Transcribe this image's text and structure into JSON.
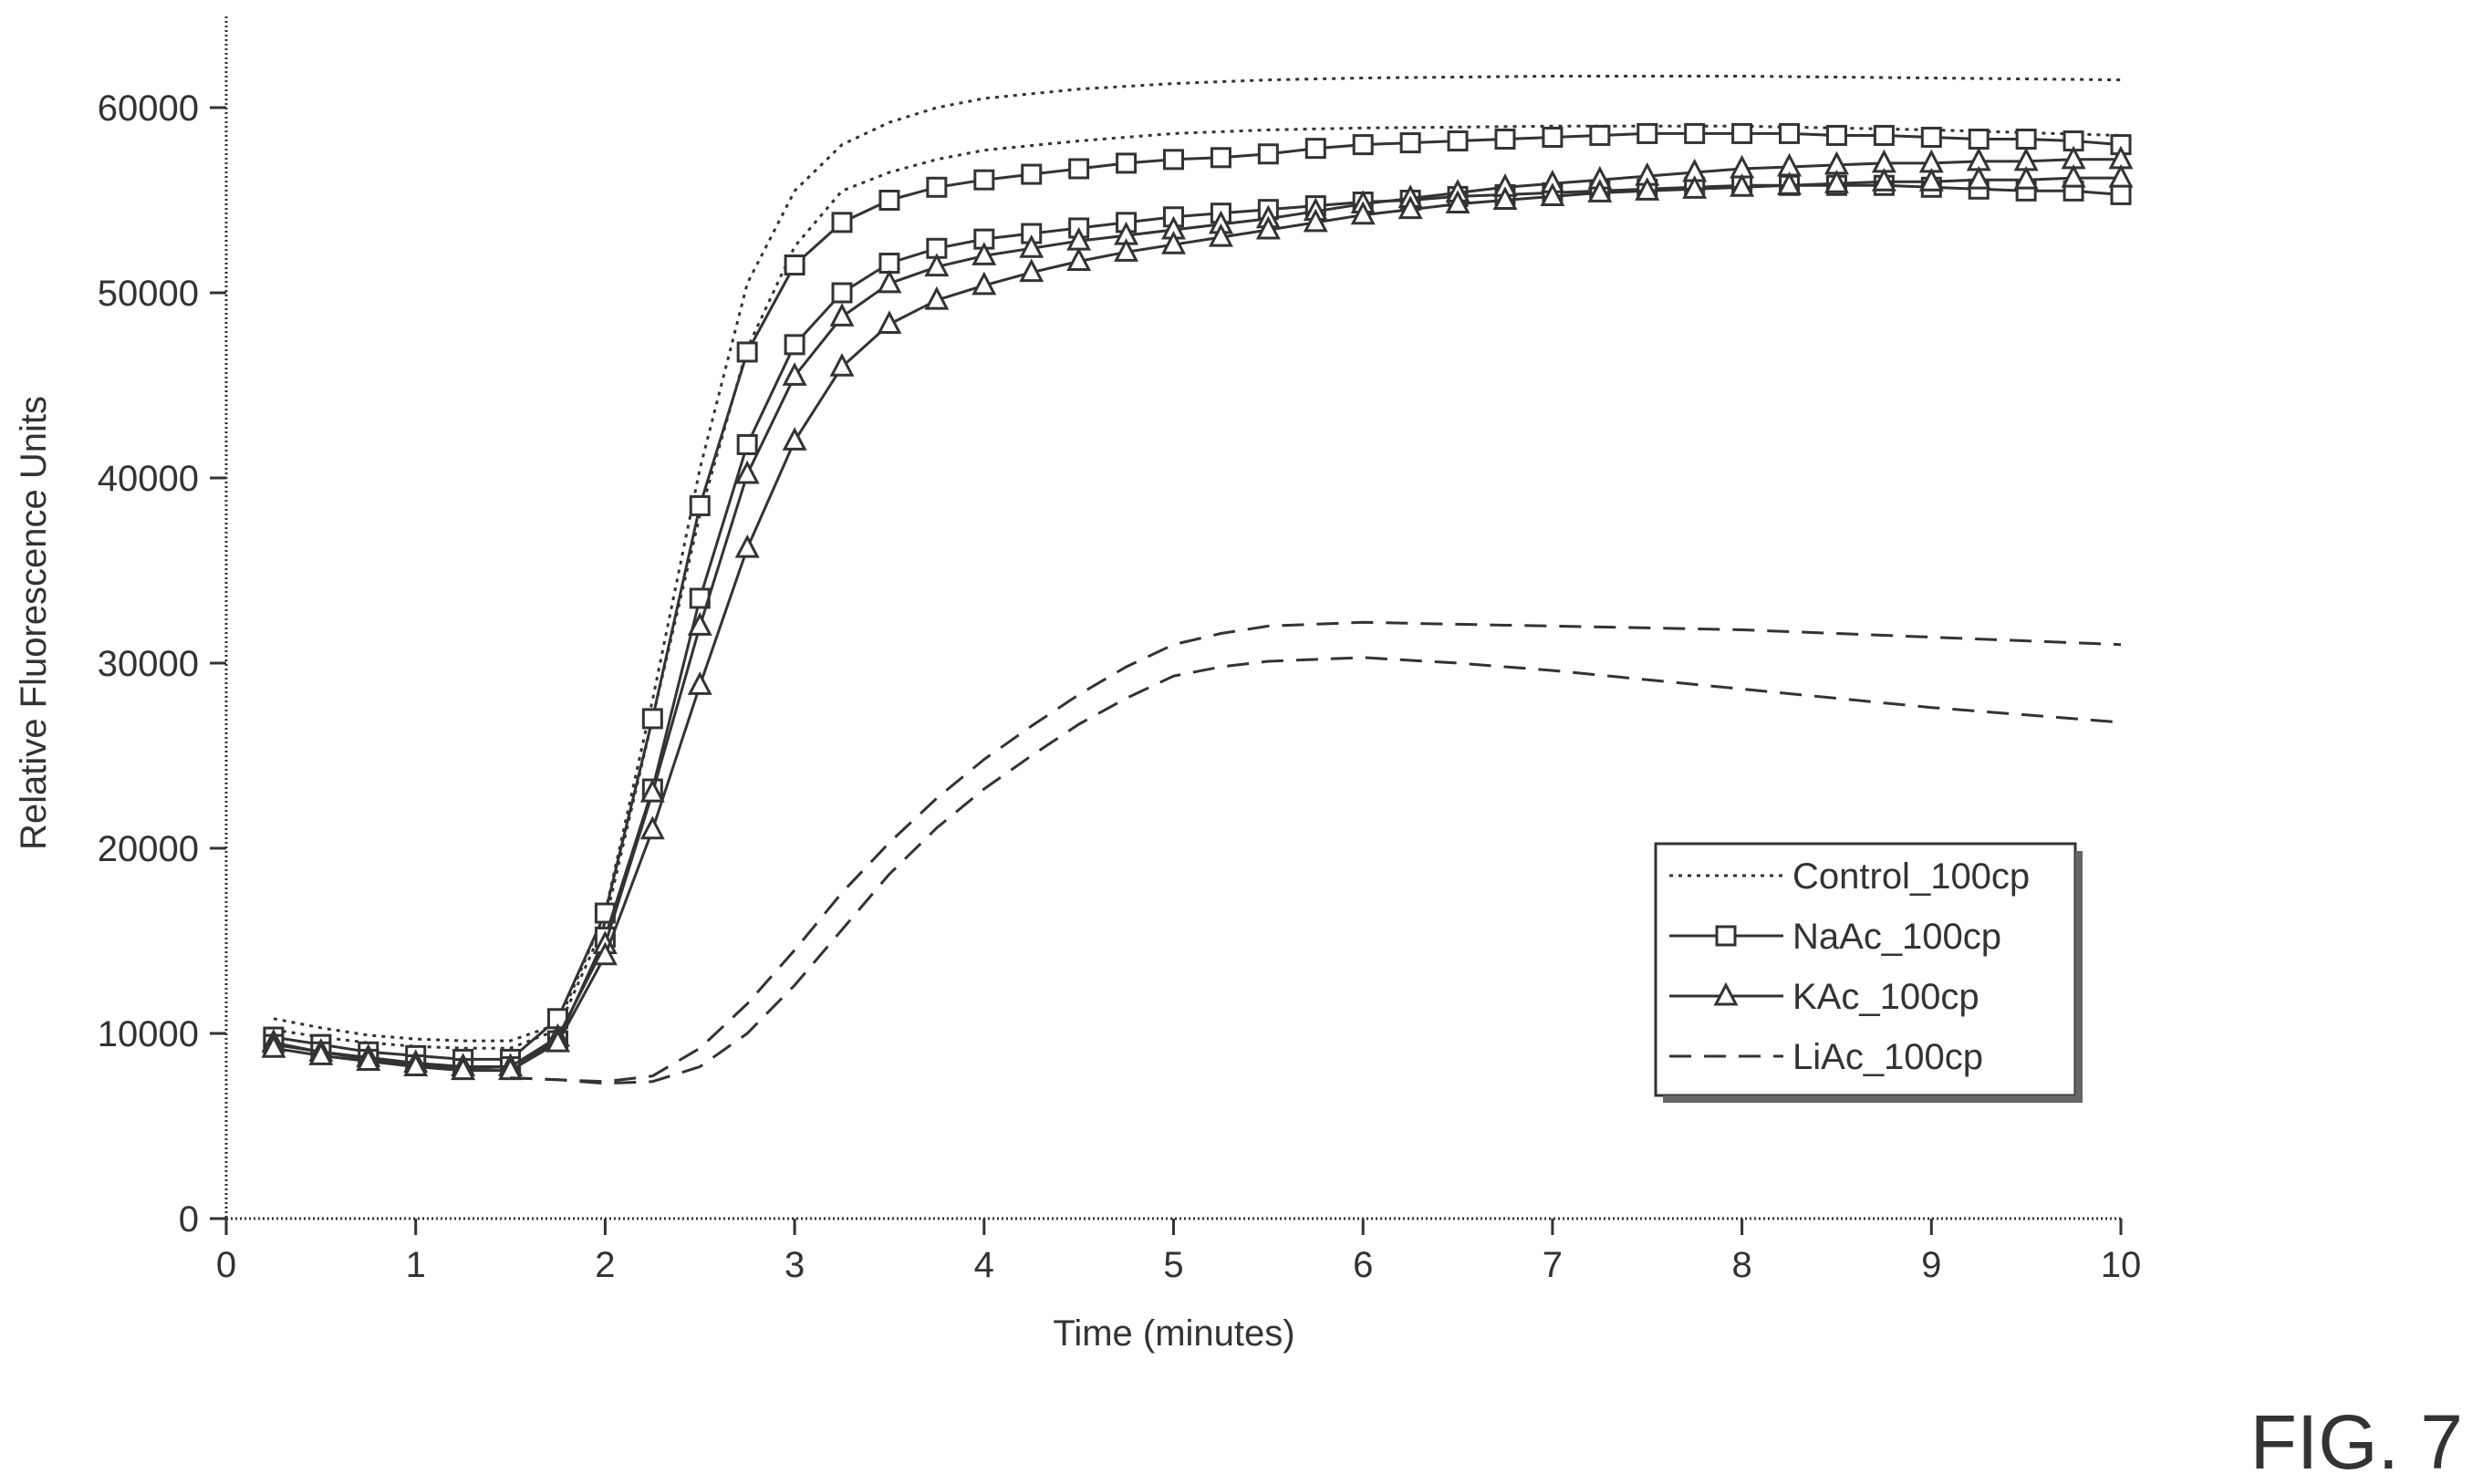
{
  "figure_label": "FIG. 7",
  "chart_data": {
    "type": "line",
    "title": "",
    "xlabel": "Time (minutes)",
    "ylabel": "Relative Fluorescence Units",
    "xlim": [
      0,
      10
    ],
    "ylim": [
      0,
      60000
    ],
    "x_ticks": [
      "0",
      "1",
      "2",
      "3",
      "4",
      "5",
      "6",
      "7",
      "8",
      "9",
      "10"
    ],
    "y_ticks": [
      "0",
      "10000",
      "20000",
      "30000",
      "40000",
      "50000",
      "60000"
    ],
    "x_tick_values": [
      0,
      1,
      2,
      3,
      4,
      5,
      6,
      7,
      8,
      9,
      10
    ],
    "y_tick_values": [
      0,
      10000,
      20000,
      30000,
      40000,
      50000,
      60000
    ],
    "grid": false,
    "legend_position": "bottom-right",
    "legend": [
      "Control_100cp",
      "NaAc_100cp",
      "KAc_100cp",
      "LiAc_100cp"
    ],
    "series": [
      {
        "name": "Control_100cp",
        "style": "dotted",
        "marker": "none",
        "x": [
          0.25,
          0.5,
          0.75,
          1.0,
          1.25,
          1.5,
          1.75,
          2.0,
          2.25,
          2.5,
          2.75,
          3.0,
          3.25,
          3.5,
          3.75,
          4.0,
          4.5,
          5.0,
          5.5,
          6.0,
          7.0,
          8.0,
          9.0,
          10.0
        ],
        "y": [
          10800,
          10300,
          9900,
          9700,
          9600,
          9600,
          10500,
          16500,
          28000,
          40500,
          50500,
          55500,
          58000,
          59200,
          60000,
          60500,
          61000,
          61300,
          61500,
          61600,
          61700,
          61700,
          61600,
          61500
        ]
      },
      {
        "name": "Control_100cp",
        "style": "dotted",
        "marker": "none",
        "x": [
          0.25,
          0.5,
          0.75,
          1.0,
          1.25,
          1.5,
          1.75,
          2.0,
          2.25,
          2.5,
          2.75,
          3.0,
          3.25,
          3.5,
          3.75,
          4.0,
          4.5,
          5.0,
          5.5,
          6.0,
          7.0,
          8.0,
          9.0,
          10.0
        ],
        "y": [
          10200,
          9800,
          9500,
          9300,
          9200,
          9200,
          10200,
          16000,
          27000,
          38000,
          47000,
          52500,
          55500,
          56500,
          57200,
          57700,
          58200,
          58600,
          58800,
          58900,
          59000,
          59000,
          58800,
          58500
        ]
      },
      {
        "name": "NaAc_100cp",
        "style": "solid",
        "marker": "square",
        "x": [
          0.25,
          0.5,
          0.75,
          1.0,
          1.25,
          1.5,
          1.75,
          2.0,
          2.25,
          2.5,
          2.75,
          3.0,
          3.25,
          3.5,
          3.75,
          4.0,
          4.25,
          4.5,
          4.75,
          5.0,
          5.25,
          5.5,
          5.75,
          6.0,
          6.25,
          6.5,
          6.75,
          7.0,
          7.25,
          7.5,
          7.75,
          8.0,
          8.25,
          8.5,
          8.75,
          9.0,
          9.25,
          9.5,
          9.75,
          10.0
        ],
        "y": [
          9800,
          9400,
          9000,
          8800,
          8600,
          8600,
          10800,
          16500,
          27000,
          38500,
          46800,
          51500,
          53800,
          55000,
          55700,
          56100,
          56400,
          56700,
          57000,
          57200,
          57300,
          57500,
          57800,
          58000,
          58100,
          58200,
          58300,
          58400,
          58500,
          58600,
          58600,
          58600,
          58600,
          58500,
          58500,
          58400,
          58300,
          58300,
          58200,
          58000
        ]
      },
      {
        "name": "NaAc_100cp",
        "style": "solid",
        "marker": "square",
        "x": [
          0.25,
          0.5,
          0.75,
          1.0,
          1.25,
          1.5,
          1.75,
          2.0,
          2.25,
          2.5,
          2.75,
          3.0,
          3.25,
          3.5,
          3.75,
          4.0,
          4.25,
          4.5,
          4.75,
          5.0,
          5.25,
          5.5,
          5.75,
          6.0,
          6.25,
          6.5,
          6.75,
          7.0,
          7.25,
          7.5,
          7.75,
          8.0,
          8.25,
          8.5,
          8.75,
          9.0,
          9.25,
          9.5,
          9.75,
          10.0
        ],
        "y": [
          9400,
          9000,
          8600,
          8300,
          8100,
          8200,
          9600,
          15200,
          23200,
          33500,
          41800,
          47200,
          50000,
          51600,
          52400,
          52900,
          53200,
          53500,
          53800,
          54100,
          54300,
          54500,
          54700,
          54900,
          55000,
          55200,
          55300,
          55400,
          55500,
          55600,
          55700,
          55800,
          55800,
          55800,
          55800,
          55700,
          55600,
          55500,
          55500,
          55300
        ]
      },
      {
        "name": "KAc_100cp",
        "style": "solid",
        "marker": "triangle",
        "x": [
          0.25,
          0.5,
          0.75,
          1.0,
          1.25,
          1.5,
          1.75,
          2.0,
          2.25,
          2.5,
          2.75,
          3.0,
          3.25,
          3.5,
          3.75,
          4.0,
          4.25,
          4.5,
          4.75,
          5.0,
          5.25,
          5.5,
          5.75,
          6.0,
          6.25,
          6.5,
          6.75,
          7.0,
          7.25,
          7.5,
          7.75,
          8.0,
          8.25,
          8.5,
          8.75,
          9.0,
          9.25,
          9.5,
          9.75,
          10.0
        ],
        "y": [
          9500,
          9000,
          8700,
          8400,
          8200,
          8200,
          9800,
          14800,
          23000,
          32000,
          40200,
          45500,
          48700,
          50500,
          51400,
          52000,
          52400,
          52800,
          53100,
          53400,
          53700,
          54000,
          54400,
          54800,
          55100,
          55400,
          55700,
          55900,
          56100,
          56300,
          56500,
          56700,
          56800,
          56900,
          57000,
          57000,
          57100,
          57100,
          57200,
          57200
        ]
      },
      {
        "name": "KAc_100cp",
        "style": "solid",
        "marker": "triangle",
        "x": [
          0.25,
          0.5,
          0.75,
          1.0,
          1.25,
          1.5,
          1.75,
          2.0,
          2.25,
          2.5,
          2.75,
          3.0,
          3.25,
          3.5,
          3.75,
          4.0,
          4.25,
          4.5,
          4.75,
          5.0,
          5.25,
          5.5,
          5.75,
          6.0,
          6.25,
          6.5,
          6.75,
          7.0,
          7.25,
          7.5,
          7.75,
          8.0,
          8.25,
          8.5,
          8.75,
          9.0,
          9.25,
          9.5,
          9.75,
          10.0
        ],
        "y": [
          9200,
          8800,
          8500,
          8200,
          8000,
          8000,
          9500,
          14200,
          21000,
          28800,
          36200,
          42000,
          46000,
          48300,
          49600,
          50400,
          51100,
          51700,
          52200,
          52600,
          53000,
          53400,
          53800,
          54200,
          54500,
          54800,
          55000,
          55200,
          55400,
          55500,
          55600,
          55700,
          55800,
          55900,
          56000,
          56000,
          56100,
          56100,
          56200,
          56200
        ]
      },
      {
        "name": "LiAc_100cp",
        "style": "dashed",
        "marker": "none",
        "x": [
          1.5,
          1.75,
          2.0,
          2.25,
          2.5,
          2.75,
          3.0,
          3.25,
          3.5,
          3.75,
          4.0,
          4.25,
          4.5,
          4.75,
          5.0,
          5.25,
          5.5,
          6.0,
          6.5,
          7.0,
          7.5,
          8.0,
          8.5,
          9.0,
          9.5,
          10.0
        ],
        "y": [
          7600,
          7500,
          7400,
          7700,
          9200,
          11600,
          14500,
          17600,
          20300,
          22700,
          24800,
          26600,
          28300,
          29800,
          31000,
          31600,
          32000,
          32200,
          32100,
          32000,
          31900,
          31800,
          31600,
          31400,
          31200,
          31000
        ]
      },
      {
        "name": "LiAc_100cp",
        "style": "dashed",
        "marker": "none",
        "x": [
          1.5,
          1.75,
          2.0,
          2.25,
          2.5,
          2.75,
          3.0,
          3.25,
          3.5,
          3.75,
          4.0,
          4.25,
          4.5,
          4.75,
          5.0,
          5.25,
          5.5,
          6.0,
          6.5,
          7.0,
          7.5,
          8.0,
          8.5,
          9.0,
          9.5,
          10.0
        ],
        "y": [
          7600,
          7500,
          7300,
          7400,
          8200,
          10000,
          12600,
          15600,
          18600,
          21100,
          23200,
          25000,
          26700,
          28100,
          29300,
          29800,
          30100,
          30300,
          30000,
          29600,
          29100,
          28600,
          28100,
          27600,
          27200,
          26800
        ]
      }
    ]
  }
}
